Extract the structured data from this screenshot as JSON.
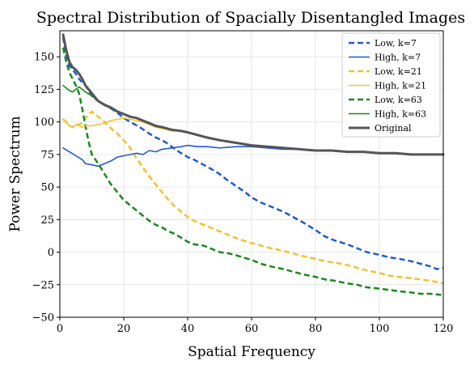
{
  "chart_data": {
    "type": "line",
    "title": "Spectral Distribution of Spacially Disentangled Images",
    "xlabel": "Spatial Frequency",
    "ylabel": "Power Spectrum",
    "xlim": [
      0,
      120
    ],
    "ylim": [
      -50,
      170
    ],
    "xticks": [
      0,
      20,
      40,
      60,
      80,
      100,
      120
    ],
    "yticks": [
      -50,
      -25,
      0,
      25,
      50,
      75,
      100,
      125,
      150
    ],
    "ytick_labels": [
      "−50",
      "−25",
      "0",
      "25",
      "50",
      "75",
      "100",
      "125",
      "150"
    ],
    "grid": true,
    "legend_position": "top-right",
    "series": [
      {
        "name": "Low, k=7",
        "color": "#1f5bd6",
        "dash": "dashed",
        "points": [
          [
            1,
            165
          ],
          [
            2,
            150
          ],
          [
            3,
            143
          ],
          [
            4,
            140
          ],
          [
            5,
            137
          ],
          [
            6,
            133
          ],
          [
            8,
            128
          ],
          [
            10,
            120
          ],
          [
            12,
            116
          ],
          [
            15,
            112
          ],
          [
            18,
            107
          ],
          [
            20,
            103
          ],
          [
            22,
            100
          ],
          [
            25,
            96
          ],
          [
            28,
            91
          ],
          [
            30,
            88
          ],
          [
            32,
            86
          ],
          [
            34,
            83
          ],
          [
            36,
            79
          ],
          [
            38,
            76
          ],
          [
            40,
            73
          ],
          [
            42,
            71
          ],
          [
            45,
            67
          ],
          [
            48,
            63
          ],
          [
            50,
            60
          ],
          [
            52,
            56
          ],
          [
            55,
            51
          ],
          [
            58,
            46
          ],
          [
            60,
            42
          ],
          [
            63,
            38
          ],
          [
            66,
            35
          ],
          [
            70,
            31
          ],
          [
            73,
            27
          ],
          [
            76,
            23
          ],
          [
            80,
            17
          ],
          [
            83,
            12
          ],
          [
            86,
            9
          ],
          [
            90,
            6
          ],
          [
            93,
            3
          ],
          [
            96,
            0
          ],
          [
            100,
            -2
          ],
          [
            103,
            -4
          ],
          [
            106,
            -5
          ],
          [
            110,
            -7
          ],
          [
            113,
            -9
          ],
          [
            116,
            -11
          ],
          [
            118,
            -13
          ],
          [
            120,
            -12
          ]
        ]
      },
      {
        "name": "High, k=7",
        "color": "#1f5bd6",
        "dash": "solid",
        "points": [
          [
            1,
            80
          ],
          [
            3,
            77
          ],
          [
            5,
            74
          ],
          [
            7,
            71
          ],
          [
            8,
            68
          ],
          [
            10,
            67
          ],
          [
            12,
            66
          ],
          [
            14,
            68
          ],
          [
            16,
            70
          ],
          [
            18,
            73
          ],
          [
            20,
            74
          ],
          [
            22,
            75
          ],
          [
            24,
            76
          ],
          [
            26,
            75
          ],
          [
            28,
            78
          ],
          [
            30,
            77
          ],
          [
            32,
            79
          ],
          [
            35,
            80
          ],
          [
            38,
            81
          ],
          [
            40,
            82
          ],
          [
            43,
            81
          ],
          [
            46,
            81
          ],
          [
            50,
            80
          ],
          [
            55,
            81
          ],
          [
            60,
            81
          ],
          [
            65,
            80
          ],
          [
            70,
            79
          ],
          [
            75,
            79
          ],
          [
            80,
            78
          ],
          [
            85,
            78
          ],
          [
            90,
            77
          ],
          [
            95,
            77
          ],
          [
            100,
            76
          ],
          [
            105,
            76
          ],
          [
            110,
            75
          ],
          [
            115,
            75
          ],
          [
            120,
            75
          ]
        ]
      },
      {
        "name": "Low, k=21",
        "color": "#f5c030",
        "dash": "dashed",
        "points": [
          [
            1,
            102
          ],
          [
            2,
            100
          ],
          [
            3,
            97
          ],
          [
            4,
            96
          ],
          [
            5,
            98
          ],
          [
            6,
            98
          ],
          [
            7,
            99
          ],
          [
            8,
            103
          ],
          [
            10,
            108
          ],
          [
            12,
            104
          ],
          [
            14,
            100
          ],
          [
            16,
            95
          ],
          [
            18,
            91
          ],
          [
            20,
            86
          ],
          [
            22,
            80
          ],
          [
            24,
            72
          ],
          [
            26,
            65
          ],
          [
            28,
            58
          ],
          [
            30,
            52
          ],
          [
            32,
            46
          ],
          [
            34,
            40
          ],
          [
            36,
            35
          ],
          [
            38,
            31
          ],
          [
            40,
            27
          ],
          [
            42,
            24
          ],
          [
            45,
            21
          ],
          [
            48,
            18
          ],
          [
            50,
            16
          ],
          [
            53,
            13
          ],
          [
            56,
            10
          ],
          [
            60,
            7
          ],
          [
            63,
            5
          ],
          [
            66,
            3
          ],
          [
            70,
            1
          ],
          [
            73,
            -1
          ],
          [
            76,
            -3
          ],
          [
            80,
            -5
          ],
          [
            83,
            -7
          ],
          [
            86,
            -8
          ],
          [
            90,
            -10
          ],
          [
            93,
            -12
          ],
          [
            96,
            -14
          ],
          [
            100,
            -16
          ],
          [
            103,
            -18
          ],
          [
            106,
            -19
          ],
          [
            110,
            -20
          ],
          [
            113,
            -21
          ],
          [
            116,
            -22
          ],
          [
            120,
            -24
          ]
        ]
      },
      {
        "name": "High, k=21",
        "color": "#f5c030",
        "dash": "solid",
        "points": [
          [
            1,
            102
          ],
          [
            2,
            100
          ],
          [
            3,
            97
          ],
          [
            4,
            96
          ],
          [
            5,
            98
          ],
          [
            6,
            97
          ],
          [
            7,
            96
          ],
          [
            8,
            97
          ],
          [
            10,
            97
          ],
          [
            12,
            98
          ],
          [
            14,
            99
          ],
          [
            16,
            101
          ],
          [
            18,
            102
          ],
          [
            20,
            103
          ],
          [
            22,
            102
          ],
          [
            24,
            101
          ],
          [
            26,
            100
          ],
          [
            28,
            98
          ],
          [
            30,
            96
          ],
          [
            32,
            95
          ],
          [
            35,
            93
          ],
          [
            38,
            93
          ],
          [
            40,
            92
          ],
          [
            43,
            90
          ],
          [
            46,
            88
          ],
          [
            50,
            86
          ],
          [
            55,
            84
          ],
          [
            60,
            82
          ],
          [
            65,
            81
          ],
          [
            70,
            80
          ],
          [
            75,
            79
          ],
          [
            80,
            78
          ],
          [
            85,
            78
          ],
          [
            90,
            77
          ],
          [
            95,
            77
          ],
          [
            100,
            76
          ],
          [
            105,
            76
          ],
          [
            110,
            75
          ],
          [
            115,
            75
          ],
          [
            120,
            75
          ]
        ]
      },
      {
        "name": "Low, k=63",
        "color": "#1a8a1a",
        "dash": "dashed",
        "points": [
          [
            1,
            157
          ],
          [
            2,
            146
          ],
          [
            3,
            138
          ],
          [
            4,
            133
          ],
          [
            5,
            128
          ],
          [
            6,
            122
          ],
          [
            7,
            110
          ],
          [
            8,
            97
          ],
          [
            9,
            85
          ],
          [
            10,
            75
          ],
          [
            12,
            68
          ],
          [
            14,
            60
          ],
          [
            16,
            52
          ],
          [
            18,
            46
          ],
          [
            20,
            40
          ],
          [
            22,
            36
          ],
          [
            24,
            32
          ],
          [
            26,
            28
          ],
          [
            28,
            24
          ],
          [
            30,
            21
          ],
          [
            32,
            19
          ],
          [
            34,
            16
          ],
          [
            36,
            14
          ],
          [
            38,
            11
          ],
          [
            40,
            8
          ],
          [
            42,
            6
          ],
          [
            45,
            5
          ],
          [
            48,
            2
          ],
          [
            50,
            0
          ],
          [
            53,
            -1
          ],
          [
            56,
            -3
          ],
          [
            60,
            -6
          ],
          [
            63,
            -9
          ],
          [
            66,
            -11
          ],
          [
            70,
            -13
          ],
          [
            73,
            -15
          ],
          [
            76,
            -17
          ],
          [
            80,
            -19
          ],
          [
            83,
            -21
          ],
          [
            86,
            -22
          ],
          [
            90,
            -24
          ],
          [
            93,
            -25
          ],
          [
            96,
            -27
          ],
          [
            100,
            -28
          ],
          [
            103,
            -29
          ],
          [
            106,
            -30
          ],
          [
            110,
            -31
          ],
          [
            113,
            -32
          ],
          [
            116,
            -32
          ],
          [
            120,
            -33
          ]
        ]
      },
      {
        "name": "High, k=63",
        "color": "#1a8a1a",
        "dash": "solid",
        "points": [
          [
            1,
            128
          ],
          [
            2,
            126
          ],
          [
            3,
            124
          ],
          [
            4,
            123
          ],
          [
            5,
            125
          ],
          [
            6,
            127
          ],
          [
            7,
            125
          ],
          [
            8,
            123
          ],
          [
            10,
            120
          ],
          [
            12,
            116
          ],
          [
            14,
            113
          ],
          [
            16,
            110
          ],
          [
            18,
            108
          ],
          [
            20,
            106
          ],
          [
            22,
            104
          ],
          [
            24,
            103
          ],
          [
            26,
            101
          ],
          [
            28,
            99
          ],
          [
            30,
            97
          ],
          [
            32,
            96
          ],
          [
            35,
            94
          ],
          [
            38,
            93
          ],
          [
            40,
            92
          ],
          [
            43,
            90
          ],
          [
            46,
            88
          ],
          [
            50,
            86
          ],
          [
            55,
            84
          ],
          [
            60,
            82
          ],
          [
            65,
            81
          ],
          [
            70,
            80
          ],
          [
            75,
            79
          ],
          [
            80,
            78
          ],
          [
            85,
            78
          ],
          [
            90,
            77
          ],
          [
            95,
            77
          ],
          [
            100,
            76
          ],
          [
            105,
            76
          ],
          [
            110,
            75
          ],
          [
            115,
            75
          ],
          [
            120,
            75
          ]
        ]
      },
      {
        "name": "Original",
        "color": "#555555",
        "dash": "solid",
        "thick": true,
        "points": [
          [
            1,
            167
          ],
          [
            2,
            155
          ],
          [
            3,
            146
          ],
          [
            4,
            142
          ],
          [
            5,
            140
          ],
          [
            6,
            137
          ],
          [
            7,
            133
          ],
          [
            8,
            128
          ],
          [
            10,
            122
          ],
          [
            12,
            116
          ],
          [
            14,
            113
          ],
          [
            16,
            111
          ],
          [
            18,
            108
          ],
          [
            20,
            106
          ],
          [
            22,
            104
          ],
          [
            24,
            103
          ],
          [
            26,
            101
          ],
          [
            28,
            99
          ],
          [
            30,
            97
          ],
          [
            32,
            96
          ],
          [
            35,
            94
          ],
          [
            38,
            93
          ],
          [
            40,
            92
          ],
          [
            43,
            90
          ],
          [
            46,
            88
          ],
          [
            50,
            86
          ],
          [
            55,
            84
          ],
          [
            60,
            82
          ],
          [
            65,
            81
          ],
          [
            70,
            80
          ],
          [
            75,
            79
          ],
          [
            80,
            78
          ],
          [
            85,
            78
          ],
          [
            90,
            77
          ],
          [
            95,
            77
          ],
          [
            100,
            76
          ],
          [
            105,
            76
          ],
          [
            110,
            75
          ],
          [
            115,
            75
          ],
          [
            120,
            75
          ]
        ]
      }
    ]
  }
}
